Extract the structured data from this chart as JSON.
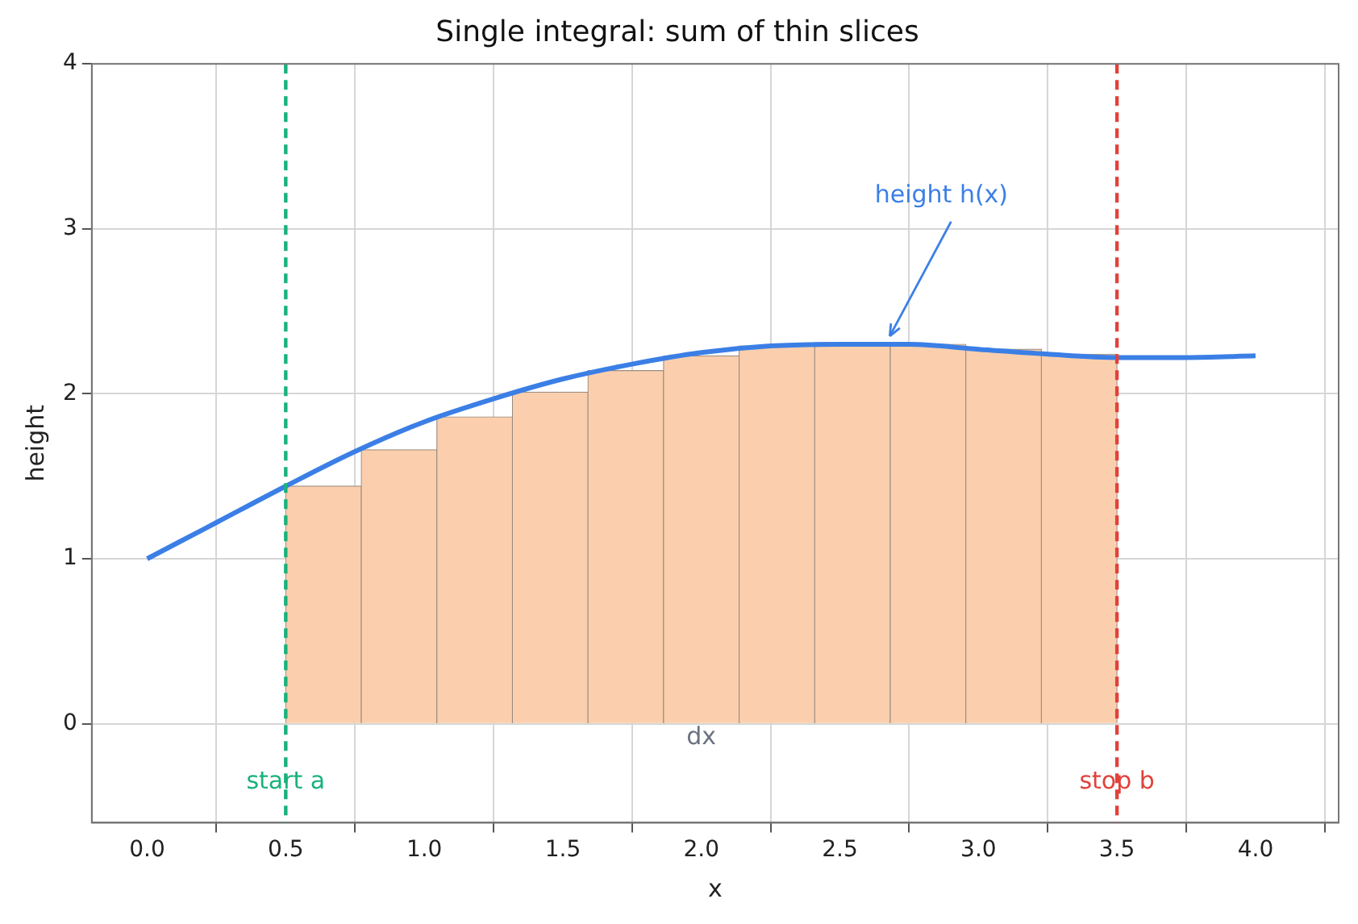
{
  "chart_data": {
    "type": "histogram",
    "title": "Single integral: sum of thin slices",
    "xlabel": "x",
    "ylabel": "height",
    "bins": [
      0.5,
      0.7727,
      1.0455,
      1.3182,
      1.5909,
      1.8636,
      2.1364,
      2.4091,
      2.6818,
      2.9545,
      3.2273,
      3.5
    ],
    "values": [
      1.44,
      1.66,
      1.86,
      2.01,
      2.14,
      2.23,
      2.29,
      2.31,
      2.3,
      2.27,
      2.24
    ],
    "color": "#fbcfad",
    "series": [
      {
        "type": "line",
        "color": "#3b7fe6",
        "x": [
          0,
          0.25,
          0.5,
          0.75,
          1,
          1.25,
          1.5,
          1.75,
          2,
          2.25,
          2.5,
          2.75,
          3,
          3.25,
          3.5,
          3.75,
          4
        ],
        "values": [
          1.0,
          1.22,
          1.44,
          1.65,
          1.83,
          1.97,
          2.09,
          2.18,
          2.25,
          2.29,
          2.3,
          2.3,
          2.27,
          2.24,
          2.22,
          2.22,
          2.23
        ]
      }
    ],
    "ref_lines": [
      {
        "axis": "x",
        "value": 0.5,
        "label": "start a",
        "color": "#19b27b",
        "line_style": "dashed"
      },
      {
        "axis": "x",
        "value": 3.5,
        "label": "stop b",
        "color": "#e0423c",
        "line_style": "dashed"
      }
    ],
    "annotations": [
      {
        "text": "height h(x)",
        "x": 2.68,
        "y": 2.32
      },
      "dx"
    ],
    "xlim": [
      -0.2,
      4.3
    ],
    "ylim": [
      -0.6,
      4
    ],
    "xticks": [
      {
        "value": 0,
        "label": "0.0"
      },
      {
        "value": 0.5,
        "label": "0.5"
      },
      {
        "value": 1,
        "label": "1.0"
      },
      {
        "value": 1.5,
        "label": "1.5"
      },
      {
        "value": 2,
        "label": "2.0"
      },
      {
        "value": 2.5,
        "label": "2.5"
      },
      {
        "value": 3,
        "label": "3.0"
      },
      {
        "value": 3.5,
        "label": "3.5"
      },
      {
        "value": 4,
        "label": "4.0"
      }
    ],
    "yticks": [
      0,
      1,
      2,
      3,
      4
    ],
    "grid": true,
    "legend": false,
    "marker": "none",
    "line_style": "solid"
  }
}
